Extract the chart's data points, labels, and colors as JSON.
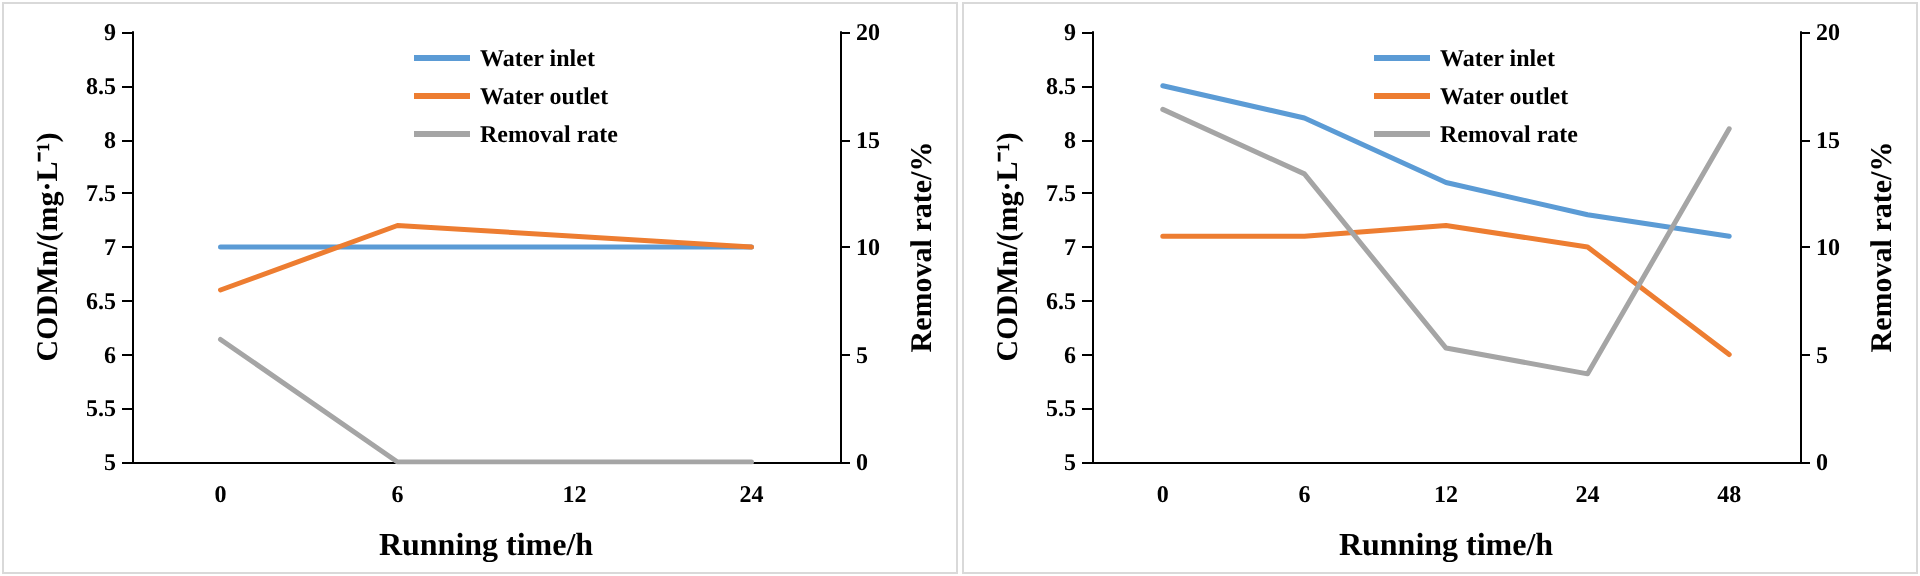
{
  "chart_data": [
    {
      "type": "line",
      "xlabel": "Running time/h",
      "ylabel": "CODMn/(mg·L⁻¹)",
      "y2label": "Removal rate/%",
      "categories": [
        "0",
        "6",
        "12",
        "24"
      ],
      "series": [
        {
          "name": "Water inlet",
          "color": "#5b9bd5",
          "values": [
            7.0,
            7.0,
            7.0,
            7.0
          ]
        },
        {
          "name": "Water outlet",
          "color": "#ed7d31",
          "values": [
            6.6,
            7.2,
            7.1,
            7.0
          ]
        },
        {
          "name": "Removal rate",
          "color": "#a5a5a5",
          "axis": "y2",
          "values": [
            5.7,
            0,
            0,
            0
          ]
        }
      ],
      "ylim": [
        5,
        9
      ],
      "yticks": [
        5,
        5.5,
        6,
        6.5,
        7,
        7.5,
        8,
        8.5,
        9
      ],
      "y2lim": [
        0,
        20
      ],
      "y2ticks": [
        0,
        5,
        10,
        15,
        20
      ],
      "grid": false,
      "legend": "top",
      "marker": "none"
    },
    {
      "type": "line",
      "xlabel": "Running time/h",
      "ylabel": "CODMn/(mg·L⁻¹)",
      "y2label": "Removal rate/%",
      "categories": [
        "0",
        "6",
        "12",
        "24",
        "48"
      ],
      "series": [
        {
          "name": "Water inlet",
          "color": "#5b9bd5",
          "values": [
            8.5,
            8.2,
            7.6,
            7.3,
            7.1
          ]
        },
        {
          "name": "Water outlet",
          "color": "#ed7d31",
          "values": [
            7.1,
            7.1,
            7.2,
            7.0,
            6.0
          ]
        },
        {
          "name": "Removal rate",
          "color": "#a5a5a5",
          "axis": "y2",
          "values": [
            16.4,
            13.4,
            5.3,
            4.1,
            15.5
          ]
        }
      ],
      "ylim": [
        5,
        9
      ],
      "yticks": [
        5,
        5.5,
        6,
        6.5,
        7,
        7.5,
        8,
        8.5,
        9
      ],
      "y2lim": [
        0,
        20
      ],
      "y2ticks": [
        0,
        5,
        10,
        15,
        20
      ],
      "grid": false,
      "legend": "top",
      "marker": "none"
    }
  ]
}
